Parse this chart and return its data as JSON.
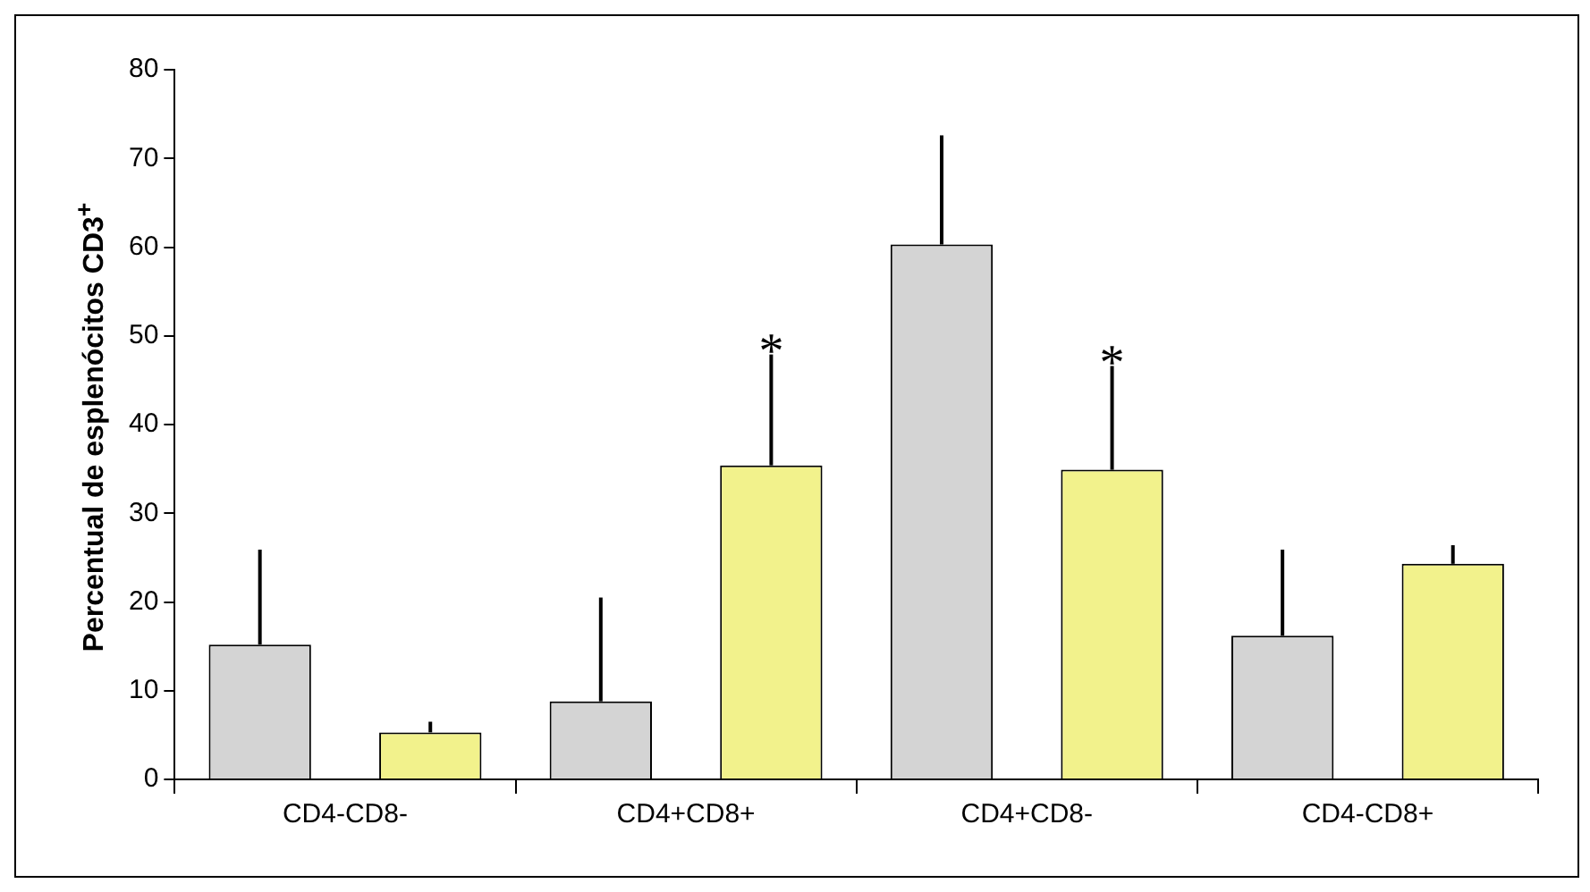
{
  "chart_data": {
    "type": "bar",
    "ylabel": "Percentual de esplenócitos CD3$^{+}$",
    "categories": [
      "CD4-CD8-",
      "CD4+CD8+",
      "CD4+CD8-",
      "CD4-CD8+"
    ],
    "series": [
      {
        "color": "#d4d4d4",
        "values": [
          15.2,
          8.8,
          60.3,
          16.2
        ],
        "errors": [
          [
            15.2,
            25.9
          ],
          [
            8.8,
            20.5
          ],
          [
            60.3,
            72.6
          ],
          [
            16.2,
            25.9
          ]
        ]
      },
      {
        "color": "#f2f28c",
        "values": [
          5.3,
          35.4,
          34.9,
          24.3
        ],
        "errors": [
          [
            5.3,
            6.5
          ],
          [
            35.4,
            47.9
          ],
          [
            34.9,
            46.6
          ],
          [
            24.3,
            26.4
          ]
        ]
      }
    ],
    "annotations": [
      "*",
      "*"
    ],
    "ylim": [
      0,
      80
    ],
    "yticks": [
      0,
      10,
      20,
      30,
      40,
      50,
      60,
      70,
      80
    ],
    "grid": false,
    "legend": false
  }
}
